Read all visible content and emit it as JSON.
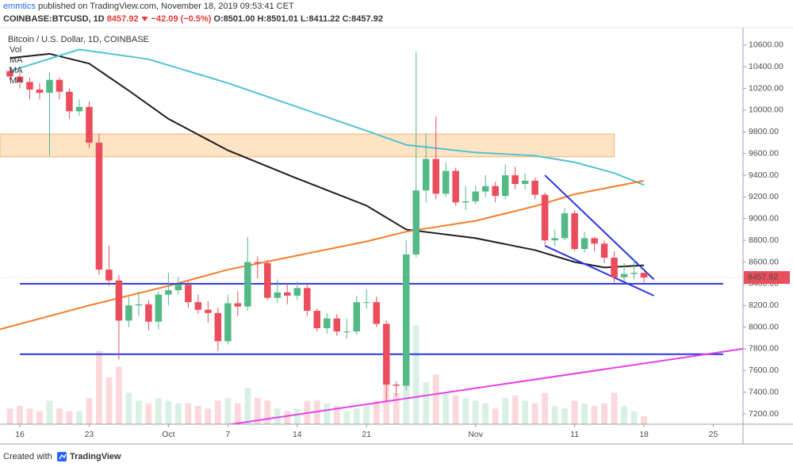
{
  "header": {
    "author": "emmtics",
    "published": "published on TradingView.com, November 18, 2019 09:53:41 CET",
    "symbol": "COINBASE:BTCUSD, 1D",
    "last": "8457.92",
    "change": "−42.09 (−0.5%)",
    "open": "O:8501.00",
    "high": "H:8501.01",
    "low": "L:8411.22",
    "close": "C:8457.92"
  },
  "chart_data": {
    "type": "candlestick",
    "title": "Bitcoin / U.S. Dollar, 1D, COINBASE",
    "legend": [
      "Vol"
    ],
    "up_color": "#53b987",
    "down_color": "#eb4d5c",
    "grid": false,
    "ylim": [
      7105,
      10760
    ],
    "yticks": [
      {
        "value": 7200,
        "label": "7200.00"
      },
      {
        "value": 7400,
        "label": "7400.00"
      },
      {
        "value": 7600,
        "label": "7600.00"
      },
      {
        "value": 7800,
        "label": "7800.00"
      },
      {
        "value": 8000,
        "label": "8000.00"
      },
      {
        "value": 8200,
        "label": "8200.00"
      },
      {
        "value": 8400,
        "label": "8400.00"
      },
      {
        "value": 8600,
        "label": "8600.00"
      },
      {
        "value": 8800,
        "label": "8800.00"
      },
      {
        "value": 9000,
        "label": "9000.00"
      },
      {
        "value": 9200,
        "label": "9200.00"
      },
      {
        "value": 9400,
        "label": "9400.00"
      },
      {
        "value": 9600,
        "label": "9600.00"
      },
      {
        "value": 9800,
        "label": "9800.00"
      },
      {
        "value": 10000,
        "label": "10000.00"
      },
      {
        "value": 10200,
        "label": "10200.00"
      },
      {
        "value": 10400,
        "label": "10400.00"
      },
      {
        "value": 10600,
        "label": "10600.00"
      }
    ],
    "xlim": [
      "2019-09-14",
      "2019-11-28"
    ],
    "xticks": [
      {
        "value": "2019-09-16",
        "label": "16"
      },
      {
        "value": "2019-09-23",
        "label": "23"
      },
      {
        "value": "2019-10-01",
        "label": "Oct"
      },
      {
        "value": "2019-10-07",
        "label": "7"
      },
      {
        "value": "2019-10-14",
        "label": "14"
      },
      {
        "value": "2019-10-21",
        "label": "21"
      },
      {
        "value": "2019-11-01",
        "label": "Nov"
      },
      {
        "value": "2019-11-11",
        "label": "11"
      },
      {
        "value": "2019-11-18",
        "label": "18"
      },
      {
        "value": "2019-11-25",
        "label": "25"
      }
    ],
    "candles": {
      "dates": [
        "2019-09-15",
        "2019-09-16",
        "2019-09-17",
        "2019-09-18",
        "2019-09-19",
        "2019-09-20",
        "2019-09-21",
        "2019-09-22",
        "2019-09-23",
        "2019-09-24",
        "2019-09-25",
        "2019-09-26",
        "2019-09-27",
        "2019-09-28",
        "2019-09-29",
        "2019-09-30",
        "2019-10-01",
        "2019-10-02",
        "2019-10-03",
        "2019-10-04",
        "2019-10-05",
        "2019-10-06",
        "2019-10-07",
        "2019-10-08",
        "2019-10-09",
        "2019-10-10",
        "2019-10-11",
        "2019-10-12",
        "2019-10-13",
        "2019-10-14",
        "2019-10-15",
        "2019-10-16",
        "2019-10-17",
        "2019-10-18",
        "2019-10-19",
        "2019-10-20",
        "2019-10-21",
        "2019-10-22",
        "2019-10-23",
        "2019-10-24",
        "2019-10-25",
        "2019-10-26",
        "2019-10-27",
        "2019-10-28",
        "2019-10-29",
        "2019-10-30",
        "2019-10-31",
        "2019-11-01",
        "2019-11-02",
        "2019-11-03",
        "2019-11-04",
        "2019-11-05",
        "2019-11-06",
        "2019-11-07",
        "2019-11-08",
        "2019-11-09",
        "2019-11-10",
        "2019-11-11",
        "2019-11-12",
        "2019-11-13",
        "2019-11-14",
        "2019-11-15",
        "2019-11-16",
        "2019-11-17",
        "2019-11-18"
      ],
      "open": [
        10360,
        10310,
        10260,
        10190,
        10160,
        10280,
        10170,
        9990,
        10030,
        9700,
        8530,
        8430,
        8060,
        8200,
        8210,
        8050,
        8300,
        8340,
        8390,
        8230,
        8160,
        8130,
        7870,
        8220,
        8190,
        8600,
        8590,
        8270,
        8320,
        8290,
        8360,
        8150,
        7990,
        8080,
        7960,
        7960,
        8230,
        8230,
        8030,
        7470,
        7460,
        8670,
        9260,
        9550,
        9230,
        9440,
        9150,
        9160,
        9250,
        9300,
        9210,
        9400,
        9320,
        9350,
        9220,
        8800,
        8820,
        9050,
        8720,
        8820,
        8770,
        8640,
        8460,
        8490,
        8501
      ],
      "high": [
        10400,
        10360,
        10300,
        10250,
        10350,
        10300,
        10200,
        10100,
        10080,
        9780,
        8750,
        8480,
        8280,
        8330,
        8250,
        8330,
        8500,
        8460,
        8420,
        8300,
        8240,
        8180,
        8300,
        8330,
        8830,
        8650,
        8620,
        8440,
        8400,
        8420,
        8400,
        8170,
        8130,
        8120,
        8080,
        8290,
        8350,
        8280,
        8060,
        7500,
        8800,
        10540,
        9790,
        9940,
        9520,
        9470,
        9300,
        9300,
        9400,
        9340,
        9500,
        9480,
        9420,
        9380,
        9240,
        8900,
        9100,
        9080,
        8880,
        8830,
        8800,
        8700,
        8590,
        8620,
        8501.01
      ],
      "low": [
        10280,
        10200,
        10100,
        10100,
        9580,
        10100,
        9920,
        9950,
        9650,
        8480,
        8380,
        7700,
        8000,
        8100,
        7970,
        7980,
        8200,
        8300,
        8180,
        8120,
        8040,
        7780,
        7840,
        8100,
        8150,
        8450,
        8250,
        8220,
        8210,
        8250,
        8100,
        7960,
        7940,
        7920,
        7890,
        7930,
        8170,
        8000,
        7320,
        7360,
        7420,
        8640,
        9150,
        9180,
        9200,
        9120,
        9080,
        9130,
        9200,
        9150,
        9180,
        9270,
        9270,
        9180,
        8760,
        8750,
        8800,
        8700,
        8690,
        8700,
        8590,
        8410,
        8420,
        8440,
        8411.22
      ],
      "close": [
        10310,
        10260,
        10190,
        10160,
        10280,
        10170,
        9990,
        10030,
        9700,
        8530,
        8430,
        8060,
        8200,
        8210,
        8050,
        8300,
        8340,
        8390,
        8230,
        8160,
        8130,
        7870,
        8220,
        8190,
        8600,
        8590,
        8270,
        8320,
        8290,
        8360,
        8150,
        7990,
        8080,
        7960,
        7960,
        8230,
        8230,
        8030,
        7470,
        7460,
        8670,
        9260,
        9550,
        9230,
        9440,
        9150,
        9160,
        9250,
        9300,
        9210,
        9400,
        9320,
        9350,
        9220,
        8800,
        8820,
        9050,
        8720,
        8820,
        8770,
        8640,
        8460,
        8490,
        8501,
        8457.92
      ],
      "volume": [
        6,
        7,
        6,
        5,
        9,
        6,
        5,
        5,
        10,
        28,
        18,
        22,
        12,
        9,
        8,
        10,
        9,
        8,
        8,
        7,
        6,
        9,
        10,
        8,
        14,
        10,
        9,
        6,
        5,
        6,
        9,
        9,
        8,
        7,
        5,
        6,
        7,
        9,
        16,
        12,
        22,
        38,
        16,
        19,
        12,
        11,
        10,
        9,
        8,
        6,
        10,
        11,
        9,
        8,
        12,
        7,
        6,
        9,
        8,
        7,
        8,
        12,
        7,
        5,
        3
      ]
    },
    "series": [
      {
        "name": "MA",
        "color": "#1e1e1e",
        "dates": [
          "2019-09-15",
          "2019-09-19",
          "2019-09-23",
          "2019-09-27",
          "2019-10-01",
          "2019-10-07",
          "2019-10-14",
          "2019-10-21",
          "2019-10-25",
          "2019-11-01",
          "2019-11-07",
          "2019-11-11",
          "2019-11-14",
          "2019-11-18"
        ],
        "values": [
          10480,
          10520,
          10430,
          10180,
          9920,
          9630,
          9370,
          9120,
          8900,
          8820,
          8710,
          8600,
          8550,
          8570
        ]
      },
      {
        "name": "MA",
        "color": "#4fc3d0",
        "dates": [
          "2019-09-15",
          "2019-09-22",
          "2019-09-29",
          "2019-10-07",
          "2019-10-14",
          "2019-10-21",
          "2019-10-25",
          "2019-11-01",
          "2019-11-07",
          "2019-11-11",
          "2019-11-15",
          "2019-11-18"
        ],
        "values": [
          10360,
          10560,
          10470,
          10250,
          10030,
          9810,
          9680,
          9610,
          9580,
          9520,
          9420,
          9310
        ]
      },
      {
        "name": "MA",
        "color": "#f57c2a",
        "dates": [
          "2019-09-14",
          "2019-09-23",
          "2019-10-01",
          "2019-10-07",
          "2019-10-14",
          "2019-10-21",
          "2019-10-25",
          "2019-11-01",
          "2019-11-07",
          "2019-11-11",
          "2019-11-18"
        ],
        "values": [
          7980,
          8200,
          8380,
          8530,
          8660,
          8790,
          8880,
          8980,
          9115,
          9225,
          9350
        ]
      }
    ],
    "drawings": {
      "zone": {
        "from": "2019-09-14",
        "to": "2019-11-15",
        "low": 9570,
        "high": 9780,
        "color": "#fdd9b0"
      },
      "hlines": [
        {
          "from": "2019-09-16",
          "to": "2019-11-26",
          "price": 8400,
          "color": "#2b35e0"
        },
        {
          "from": "2019-09-16",
          "to": "2019-11-26",
          "price": 7750,
          "color": "#2b35e0"
        }
      ],
      "trendlines": [
        {
          "x1": "2019-10-07",
          "y1": 7100,
          "x2": "2019-11-28",
          "y2": 7800,
          "color": "#e83ee8"
        },
        {
          "x1": "2019-11-08",
          "y1": 9400,
          "x2": "2019-11-19",
          "y2": 8440,
          "color": "#2b35e0"
        },
        {
          "x1": "2019-11-08",
          "y1": 8750,
          "x2": "2019-11-19",
          "y2": 8290,
          "color": "#2b35e0"
        }
      ]
    }
  },
  "footer": {
    "created": "Created with",
    "brand": "TradingView"
  }
}
